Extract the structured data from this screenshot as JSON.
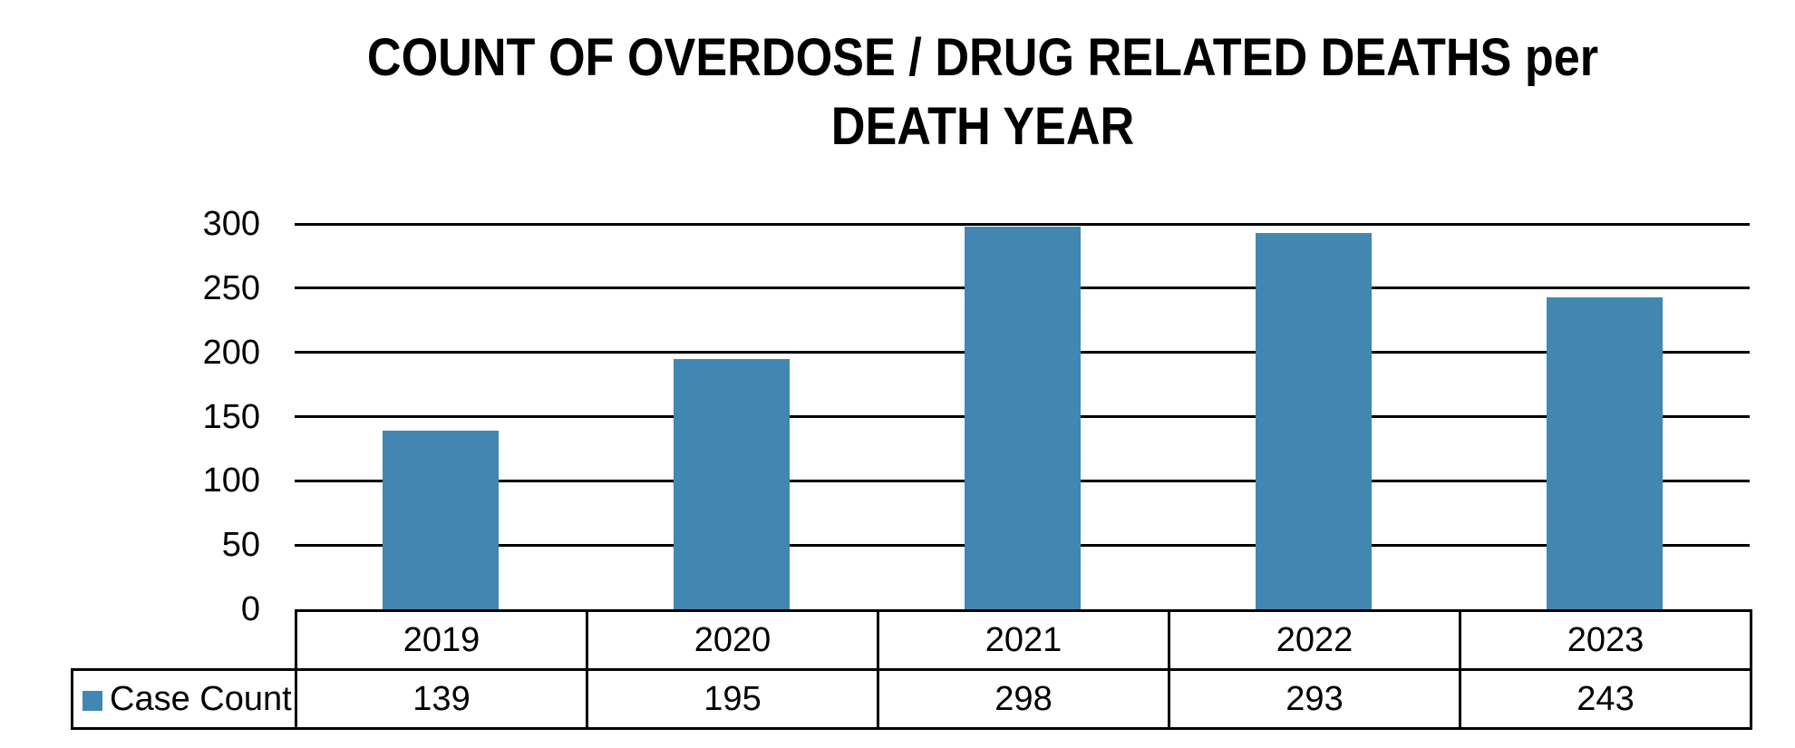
{
  "title": {
    "line1": "COUNT OF OVERDOSE / DRUG RELATED DEATHS per",
    "line2": "DEATH YEAR",
    "full": "COUNT OF OVERDOSE / DRUG RELATED DEATHS per DEATH YEAR"
  },
  "chart_data": {
    "type": "bar",
    "title": "COUNT OF OVERDOSE / DRUG RELATED DEATHS per DEATH YEAR",
    "categories": [
      "2019",
      "2020",
      "2021",
      "2022",
      "2023"
    ],
    "series": [
      {
        "name": "Case Count",
        "values": [
          139,
          195,
          298,
          293,
          243
        ]
      }
    ],
    "xlabel": "",
    "ylabel": "",
    "ylim": [
      0,
      300
    ],
    "yticks": [
      300,
      250,
      200,
      150,
      100,
      50,
      0
    ],
    "grid": true,
    "legend_position": "table-bottom-left",
    "bar_color": "#4187B1"
  },
  "legend": {
    "label": "Case Count",
    "marker_color": "#4187B1"
  },
  "colors": {
    "bar": "#4187B1",
    "gridline": "#000000",
    "table_border": "#000000",
    "text": "#000000",
    "background": "#FFFFFF"
  }
}
